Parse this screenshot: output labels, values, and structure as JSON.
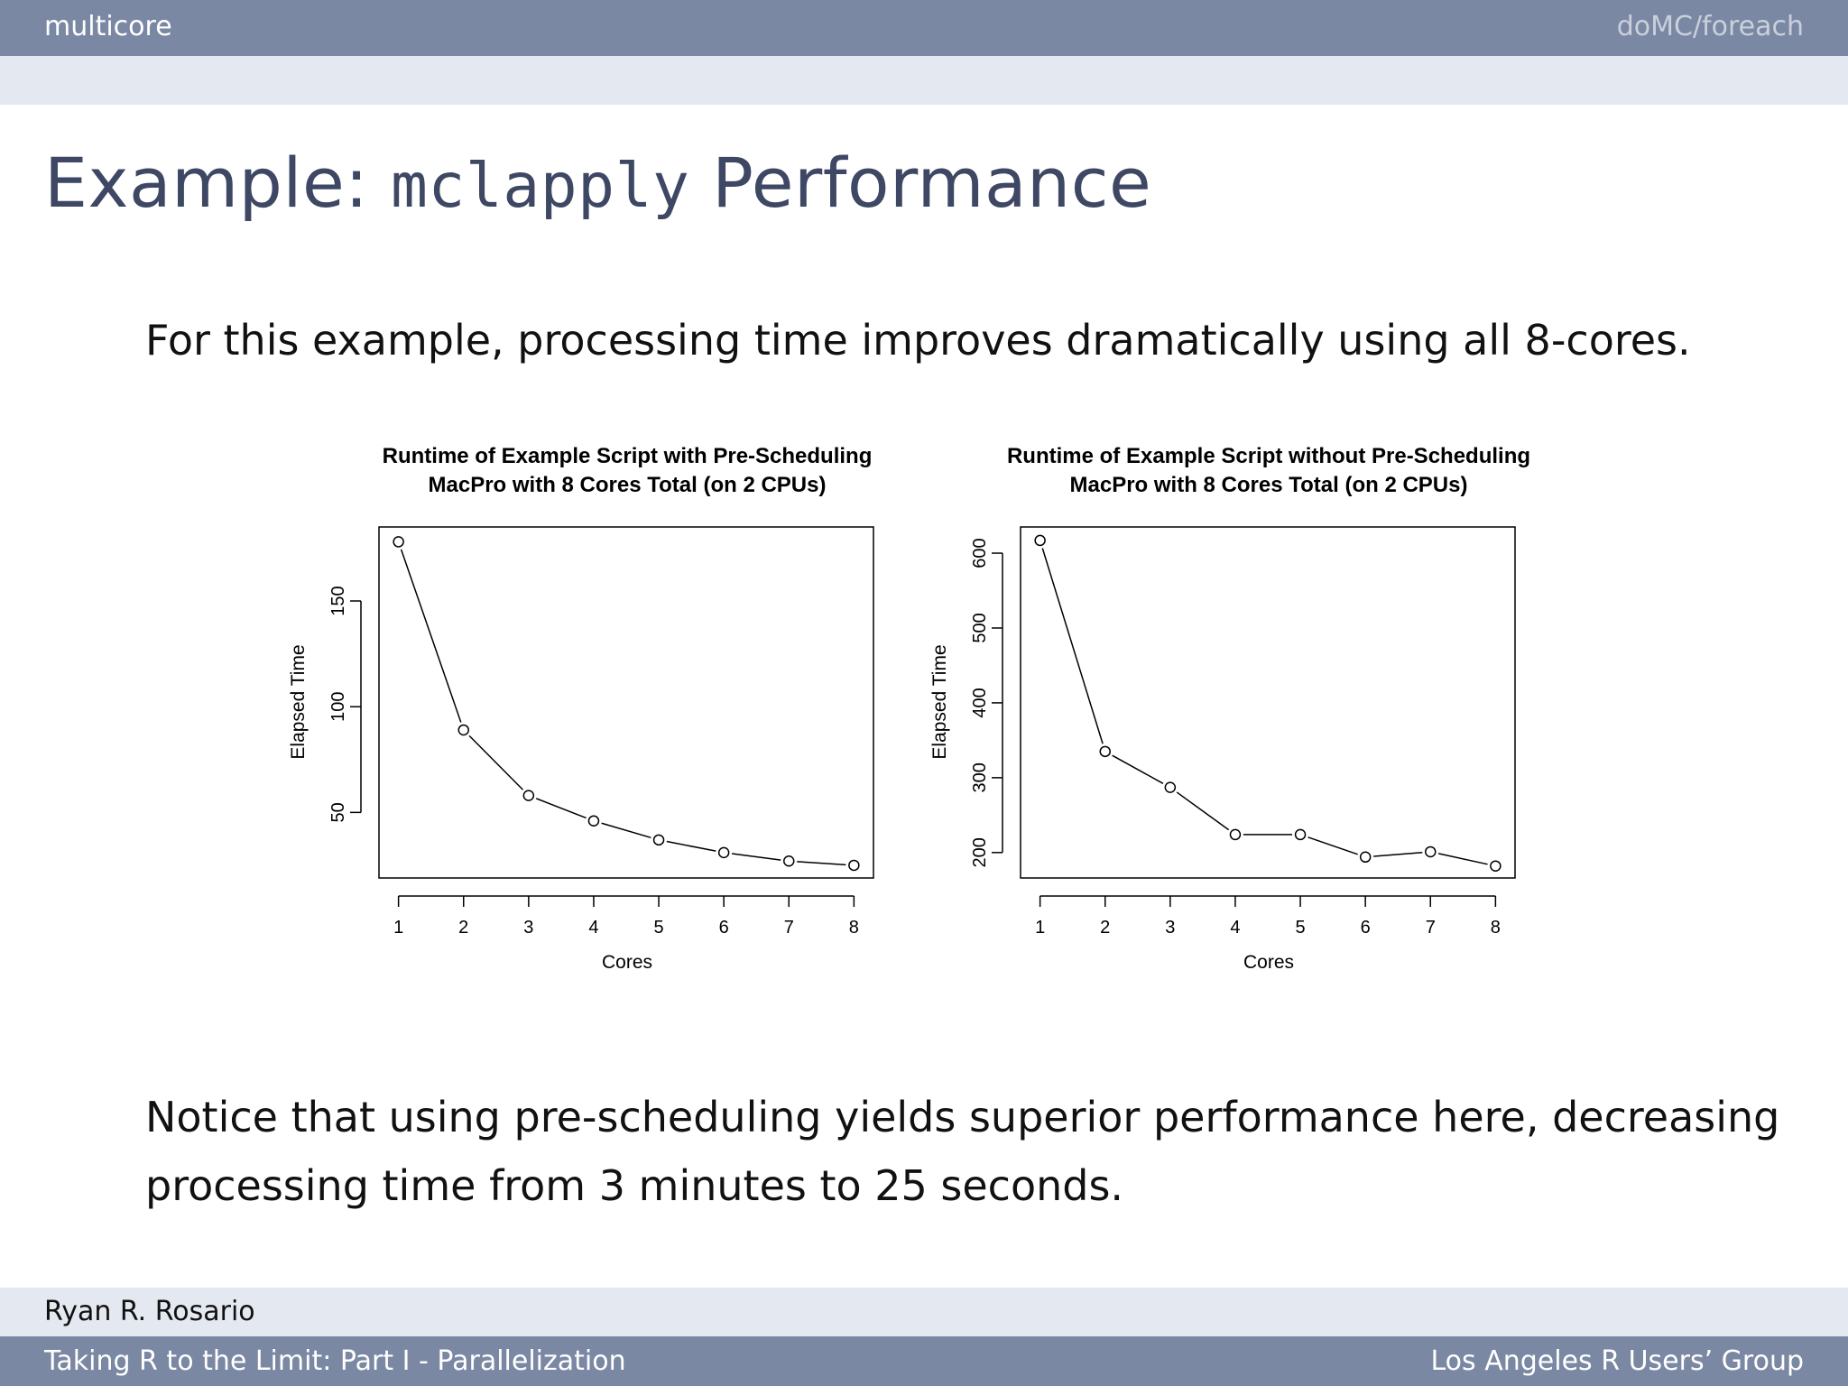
{
  "header": {
    "section": "multicore",
    "subsection": "doMC/foreach"
  },
  "slide": {
    "title_prefix": "Example: ",
    "title_code": "mclapply",
    "title_suffix": " Performance",
    "intro": "For this example, processing time improves dramatically using all 8-cores.",
    "notice_line1": "Notice that using pre-scheduling yields superior performance here, decreasing",
    "notice_line2": "processing time from 3 minutes to 25 seconds."
  },
  "footer": {
    "author": "Ryan R. Rosario",
    "talk": "Taking R to the Limit: Part I - Parallelization",
    "venue": "Los Angeles R Users’ Group"
  },
  "chart_data": [
    {
      "type": "line",
      "title": "Runtime of Example Script with Pre-Scheduling",
      "subtitle": "MacPro with 8 Cores Total (on 2 CPUs)",
      "xlabel": "Cores",
      "ylabel": "Elapsed Time",
      "x": [
        1,
        2,
        3,
        4,
        5,
        6,
        7,
        8
      ],
      "y": [
        178,
        89,
        58,
        46,
        37,
        31,
        27,
        25
      ],
      "xticks": [
        1,
        2,
        3,
        4,
        5,
        6,
        7,
        8
      ],
      "yticks": [
        50,
        100,
        150
      ],
      "xlim": [
        0.7,
        8.3
      ],
      "ylim": [
        19,
        185
      ],
      "markers": "open-circle",
      "grid": false
    },
    {
      "type": "line",
      "title": "Runtime of Example Script without Pre-Scheduling",
      "subtitle": "MacPro with 8 Cores Total (on 2 CPUs)",
      "xlabel": "Cores",
      "ylabel": "Elapsed Time",
      "x": [
        1,
        2,
        3,
        4,
        5,
        6,
        7,
        8
      ],
      "y": [
        617,
        335,
        287,
        224,
        224,
        194,
        201,
        182
      ],
      "xticks": [
        1,
        2,
        3,
        4,
        5,
        6,
        7,
        8
      ],
      "yticks": [
        200,
        300,
        400,
        500,
        600
      ],
      "xlim": [
        0.7,
        8.3
      ],
      "ylim": [
        166,
        635
      ],
      "markers": "open-circle",
      "grid": false
    }
  ]
}
